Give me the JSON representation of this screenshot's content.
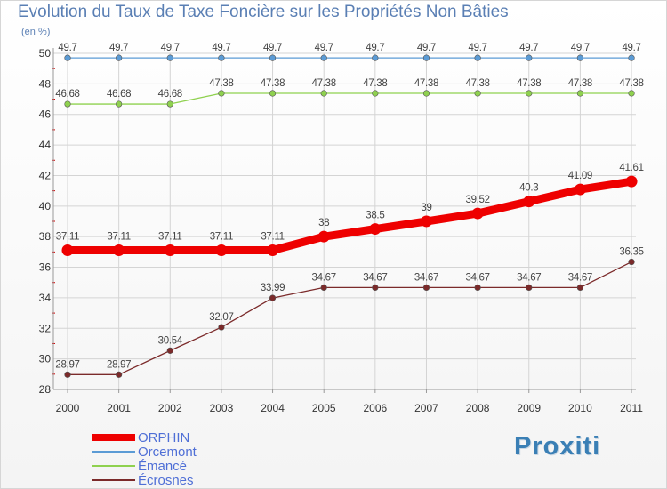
{
  "title": "Evolution du Taux de Taxe Foncière sur les Propriétés Non Bâties",
  "unit_label": "(en %)",
  "brand": "Proxiti",
  "chart_data": {
    "type": "line",
    "x": [
      "2000",
      "2001",
      "2002",
      "2003",
      "2004",
      "2005",
      "2006",
      "2007",
      "2008",
      "2009",
      "2010",
      "2011"
    ],
    "ylim": [
      28,
      50
    ],
    "yticks": [
      "28",
      "30",
      "32",
      "34",
      "36",
      "38",
      "40",
      "42",
      "44",
      "46",
      "48",
      "50"
    ],
    "grid": true,
    "legend_position": "bottom-left",
    "series": [
      {
        "name": "ORPHIN",
        "color": "#ee0000",
        "bold": true,
        "values": [
          37.11,
          37.11,
          37.11,
          37.11,
          37.11,
          38,
          38.5,
          39,
          39.52,
          40.3,
          41.09,
          41.61
        ],
        "labels": [
          "37.11",
          "37.11",
          "37.11",
          "37.11",
          "37.11",
          "38",
          "38.5",
          "39",
          "39.52",
          "40.3",
          "41.09",
          "41.61"
        ]
      },
      {
        "name": "Orcemont",
        "color": "#5b9bd5",
        "bold": false,
        "values": [
          49.7,
          49.7,
          49.7,
          49.7,
          49.7,
          49.7,
          49.7,
          49.7,
          49.7,
          49.7,
          49.7,
          49.7
        ],
        "labels": [
          "49.7",
          "49.7",
          "49.7",
          "49.7",
          "49.7",
          "49.7",
          "49.7",
          "49.7",
          "49.7",
          "49.7",
          "49.7",
          "49.7"
        ]
      },
      {
        "name": "Émancé",
        "color": "#8fd14f",
        "bold": false,
        "values": [
          46.68,
          46.68,
          46.68,
          47.38,
          47.38,
          47.38,
          47.38,
          47.38,
          47.38,
          47.38,
          47.38,
          47.38
        ],
        "labels": [
          "46.68",
          "46.68",
          "46.68",
          "47.38",
          "47.38",
          "47.38",
          "47.38",
          "47.38",
          "47.38",
          "47.38",
          "47.38",
          "47.38"
        ]
      },
      {
        "name": "Écrosnes",
        "color": "#7b2a2a",
        "bold": false,
        "values": [
          28.97,
          28.97,
          30.54,
          32.07,
          33.99,
          34.67,
          34.67,
          34.67,
          34.67,
          34.67,
          34.67,
          36.35
        ],
        "labels": [
          "28.97",
          "28.97",
          "30.54",
          "32.07",
          "33.99",
          "34.67",
          "34.67",
          "34.67",
          "34.67",
          "34.67",
          "34.67",
          "36.35"
        ]
      }
    ]
  }
}
